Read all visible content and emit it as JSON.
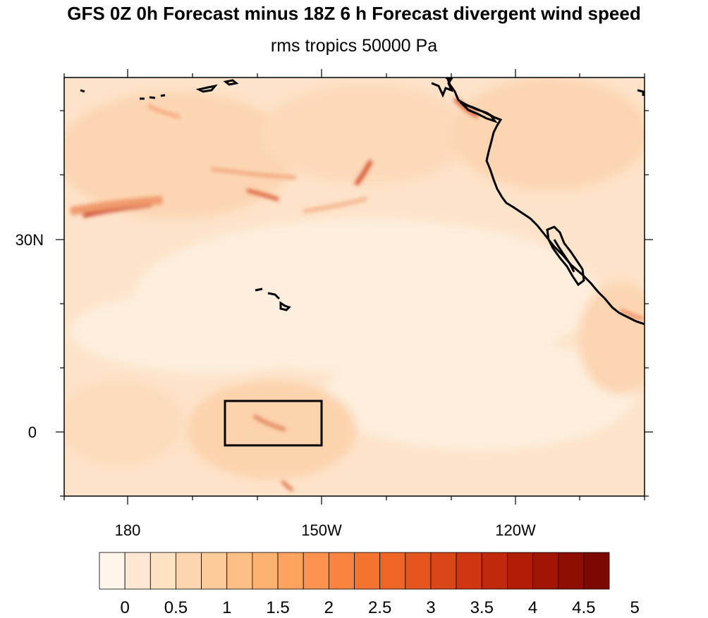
{
  "title": "GFS 0Z 0h Forecast minus 18Z 6 h Forecast divergent wind speed",
  "subtitle": "rms tropics 50000 Pa",
  "map": {
    "lat_labels": [
      "30N",
      "0"
    ],
    "lon_labels": [
      "180",
      "150W",
      "120W"
    ],
    "region_box": {
      "lon_min": -165,
      "lon_max": -150,
      "lat_min": -2,
      "lat_max": 5
    },
    "colors": {
      "background_fill": "#fde6cf",
      "coast": "#000000"
    }
  },
  "colorbar": {
    "labels": [
      "0",
      "0.5",
      "1",
      "1.5",
      "2",
      "2.5",
      "3",
      "3.5",
      "4",
      "4.5",
      "5"
    ],
    "colors": [
      "#fff5eb",
      "#fee8d3",
      "#fee0c2",
      "#fdd5ae",
      "#fdca9a",
      "#fdbf86",
      "#fdb272",
      "#fda35f",
      "#fd934f",
      "#f9843f",
      "#f4732f",
      "#ee6526",
      "#e4561e",
      "#da4617",
      "#cf3611",
      "#c0290b",
      "#b21d07",
      "#a01504",
      "#8e0e03",
      "#7c0802"
    ]
  }
}
